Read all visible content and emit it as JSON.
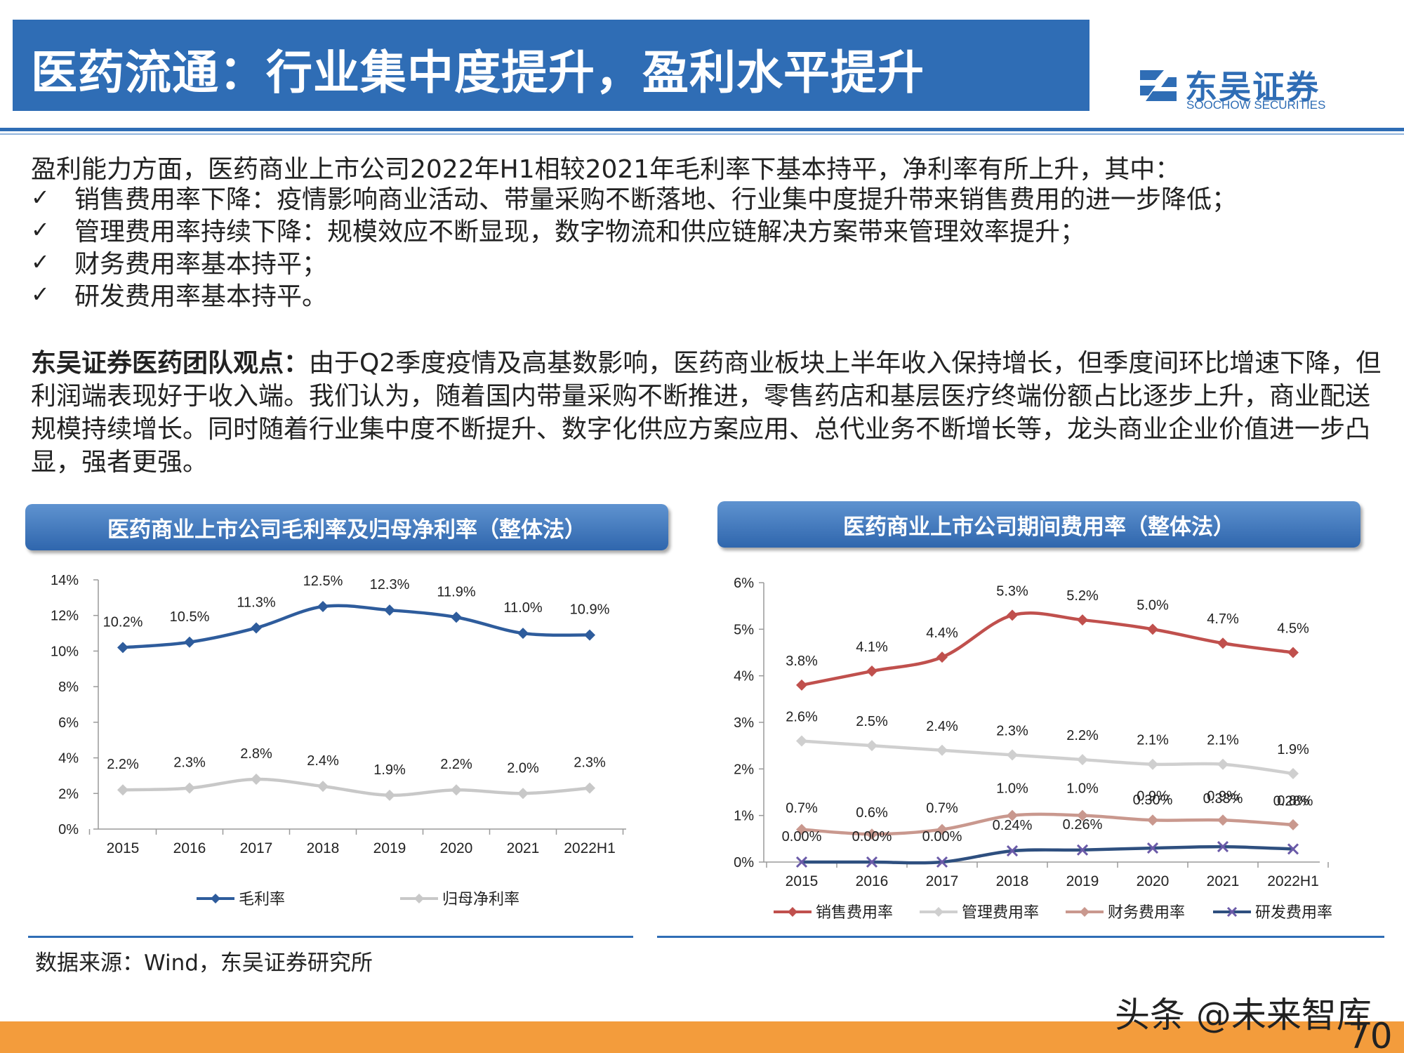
{
  "header": {
    "title": "医药流通：行业集中度提升，盈利水平提升",
    "logo_cn": "东吴证券",
    "logo_en": "SOOCHOW SECURITIES",
    "logo_mark": "SCS"
  },
  "body": {
    "intro": "盈利能力方面，医药商业上市公司2022年H1相较2021年毛利率下基本持平，净利率有所上升，其中：",
    "check_symbol": "✓",
    "bullets": [
      "销售费用率下降：疫情影响商业活动、带量采购不断落地、行业集中度提升带来销售费用的进一步降低；",
      "管理费用率持续下降：规模效应不断显现，数字物流和供应链解决方案带来管理效率提升；",
      "财务费用率基本持平；",
      "研发费用率基本持平。"
    ],
    "view_lead": "东吴证券医药团队观点：",
    "view_text": "由于Q2季度疫情及高基数影响，医药商业板块上半年收入保持增长，但季度间环比增速下降，但利润端表现好于收入端。我们认为，随着国内带量采购不断推进，零售药店和基层医疗终端份额占比逐步上升，商业配送规模持续增长。同时随着行业集中度不断提升、数字化供应方案应用、总代业务不断增长等，龙头商业企业价值进一步凸显，强者更强。"
  },
  "chart_data": [
    {
      "type": "line",
      "title": "医药商业上市公司毛利率及归母净利率（整体法）",
      "categories": [
        "2015",
        "2016",
        "2017",
        "2018",
        "2019",
        "2020",
        "2021",
        "2022H1"
      ],
      "ylim": [
        0,
        14
      ],
      "yticks": [
        0,
        2,
        4,
        6,
        8,
        10,
        12,
        14
      ],
      "ytick_labels": [
        "0%",
        "2%",
        "4%",
        "6%",
        "8%",
        "10%",
        "12%",
        "14%"
      ],
      "grid": false,
      "legend_position": "bottom",
      "series": [
        {
          "name": "毛利率",
          "color": "#2e5c9c",
          "marker": "diamond",
          "values": [
            10.2,
            10.5,
            11.3,
            12.5,
            12.3,
            11.9,
            11.0,
            10.9
          ],
          "labels": [
            "10.2%",
            "10.5%",
            "11.3%",
            "12.5%",
            "12.3%",
            "11.9%",
            "11.0%",
            "10.9%"
          ]
        },
        {
          "name": "归母净利率",
          "color": "#c8c8c8",
          "marker": "diamond",
          "values": [
            2.2,
            2.3,
            2.8,
            2.4,
            1.9,
            2.2,
            2.0,
            2.3
          ],
          "labels": [
            "2.2%",
            "2.3%",
            "2.8%",
            "2.4%",
            "1.9%",
            "2.2%",
            "2.0%",
            "2.3%"
          ]
        }
      ]
    },
    {
      "type": "line",
      "title": "医药商业上市公司期间费用率（整体法）",
      "categories": [
        "2015",
        "2016",
        "2017",
        "2018",
        "2019",
        "2020",
        "2021",
        "2022H1"
      ],
      "ylim": [
        0,
        6
      ],
      "yticks": [
        0,
        1,
        2,
        3,
        4,
        5,
        6
      ],
      "ytick_labels": [
        "0%",
        "1%",
        "2%",
        "3%",
        "4%",
        "5%",
        "6%"
      ],
      "grid": false,
      "legend_position": "bottom",
      "series": [
        {
          "name": "销售费用率",
          "color": "#c0504d",
          "marker": "diamond",
          "values": [
            3.8,
            4.1,
            4.4,
            5.3,
            5.2,
            5.0,
            4.7,
            4.5
          ],
          "labels": [
            "3.8%",
            "4.1%",
            "4.4%",
            "5.3%",
            "5.2%",
            "5.0%",
            "4.7%",
            "4.5%"
          ]
        },
        {
          "name": "管理费用率",
          "color": "#cfcfcf",
          "marker": "diamond",
          "values": [
            2.6,
            2.5,
            2.4,
            2.3,
            2.2,
            2.1,
            2.1,
            1.9
          ],
          "labels": [
            "2.6%",
            "2.5%",
            "2.4%",
            "2.3%",
            "2.2%",
            "2.1%",
            "2.1%",
            "1.9%"
          ]
        },
        {
          "name": "财务费用率",
          "color": "#c9988e",
          "marker": "diamond",
          "values": [
            0.7,
            0.6,
            0.7,
            1.0,
            1.0,
            0.9,
            0.9,
            0.8
          ],
          "labels": [
            "0.7%",
            "0.6%",
            "0.7%",
            "1.0%",
            "1.0%",
            "0.9%",
            "0.9%",
            "0.8%"
          ]
        },
        {
          "name": "研发费用率",
          "color": "#2e4f7f",
          "marker": "x",
          "values": [
            0.0,
            0.0,
            0.0,
            0.24,
            0.26,
            0.3,
            0.33,
            0.28
          ],
          "labels": [
            "0.00%",
            "0.00%",
            "0.00%",
            "0.24%",
            "0.26%",
            "0.30%",
            "0.33%",
            "0.28%"
          ]
        }
      ]
    }
  ],
  "footer": {
    "source": "数据来源：Wind，东吴证券研究所",
    "watermark": "头条 @未来智库",
    "page_number": "70"
  }
}
